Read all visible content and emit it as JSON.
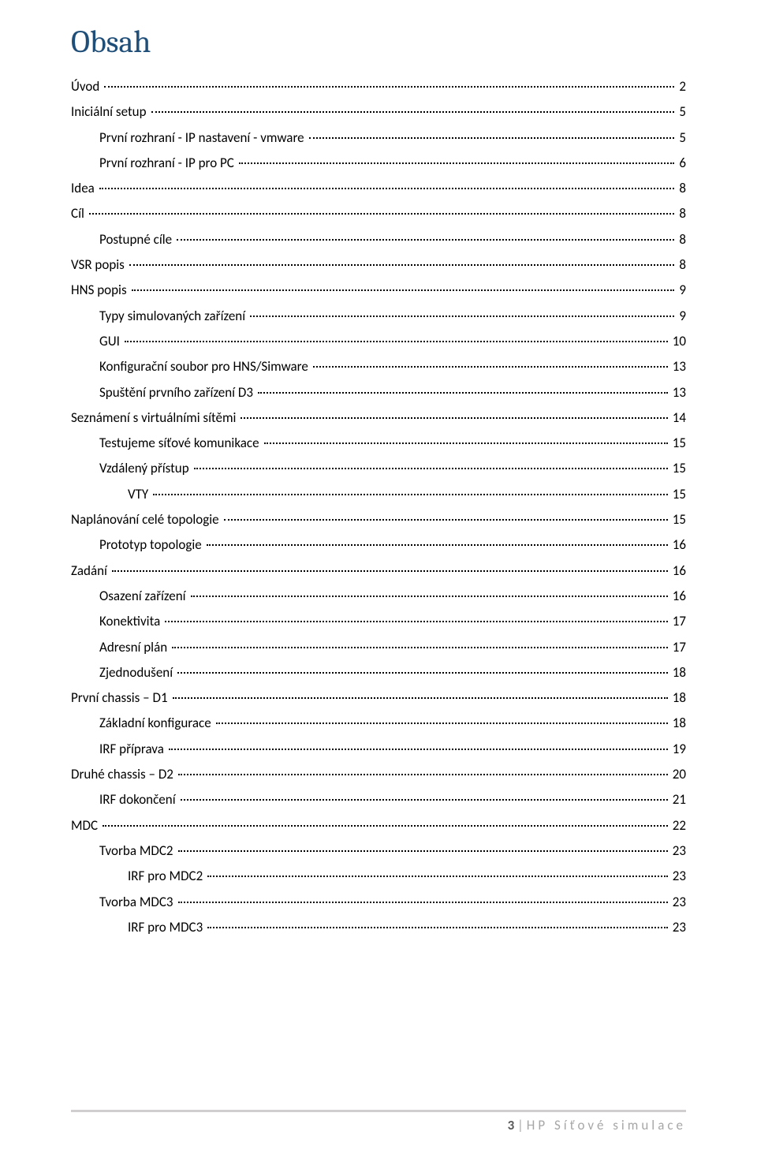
{
  "title": "Obsah",
  "toc": [
    {
      "label": "Úvod",
      "page": "2",
      "level": 1
    },
    {
      "label": "Iniciální setup",
      "page": "5",
      "level": 1
    },
    {
      "label": "První rozhraní - IP nastavení - vmware",
      "page": "5",
      "level": 2
    },
    {
      "label": "První rozhraní - IP pro PC",
      "page": "6",
      "level": 2
    },
    {
      "label": "Idea",
      "page": "8",
      "level": 1
    },
    {
      "label": "Cíl",
      "page": "8",
      "level": 1
    },
    {
      "label": "Postupné cíle",
      "page": "8",
      "level": 2
    },
    {
      "label": "VSR popis",
      "page": "8",
      "level": 1
    },
    {
      "label": "HNS popis",
      "page": "9",
      "level": 1
    },
    {
      "label": "Typy simulovaných zařízení",
      "page": "9",
      "level": 2
    },
    {
      "label": "GUI",
      "page": "10",
      "level": 2
    },
    {
      "label": "Konfigurační soubor pro HNS/Simware",
      "page": "13",
      "level": 2
    },
    {
      "label": "Spuštění prvního zařízení D3",
      "page": "13",
      "level": 2
    },
    {
      "label": "Seznámení s virtuálními sítěmi",
      "page": "14",
      "level": 1
    },
    {
      "label": "Testujeme síťové komunikace",
      "page": "15",
      "level": 2
    },
    {
      "label": "Vzdálený přístup",
      "page": "15",
      "level": 2
    },
    {
      "label": "VTY",
      "page": "15",
      "level": 3
    },
    {
      "label": "Naplánování celé topologie",
      "page": "15",
      "level": 1
    },
    {
      "label": "Prototyp topologie",
      "page": "16",
      "level": 2
    },
    {
      "label": "Zadání",
      "page": "16",
      "level": 1
    },
    {
      "label": "Osazení zařízení",
      "page": "16",
      "level": 2
    },
    {
      "label": "Konektivita",
      "page": "17",
      "level": 2
    },
    {
      "label": "Adresní plán",
      "page": "17",
      "level": 2
    },
    {
      "label": "Zjednodušení",
      "page": "18",
      "level": 2
    },
    {
      "label": "První chassis – D1",
      "page": "18",
      "level": 1
    },
    {
      "label": "Základní konfigurace",
      "page": "18",
      "level": 2
    },
    {
      "label": "IRF příprava",
      "page": "19",
      "level": 2
    },
    {
      "label": "Druhé chassis – D2",
      "page": "20",
      "level": 1
    },
    {
      "label": "IRF dokončení",
      "page": "21",
      "level": 2
    },
    {
      "label": "MDC",
      "page": "22",
      "level": 1
    },
    {
      "label": "Tvorba MDC2",
      "page": "23",
      "level": 2
    },
    {
      "label": "IRF pro MDC2",
      "page": "23",
      "level": 3
    },
    {
      "label": "Tvorba MDC3",
      "page": "23",
      "level": 2
    },
    {
      "label": "IRF pro MDC3",
      "page": "23",
      "level": 3
    }
  ],
  "footer": {
    "page_number": "3",
    "separator": " | ",
    "text": "HP Síťové simulace"
  },
  "colors": {
    "title": "#1f4e79",
    "text": "#000000",
    "footer_line": "#d0cece",
    "footer_text": "#a6a6a6",
    "footer_page": "#595959",
    "background": "#ffffff"
  },
  "typography": {
    "title_font": "Cambria",
    "body_font": "Calibri",
    "title_size_pt": 28,
    "body_size_pt": 11
  }
}
